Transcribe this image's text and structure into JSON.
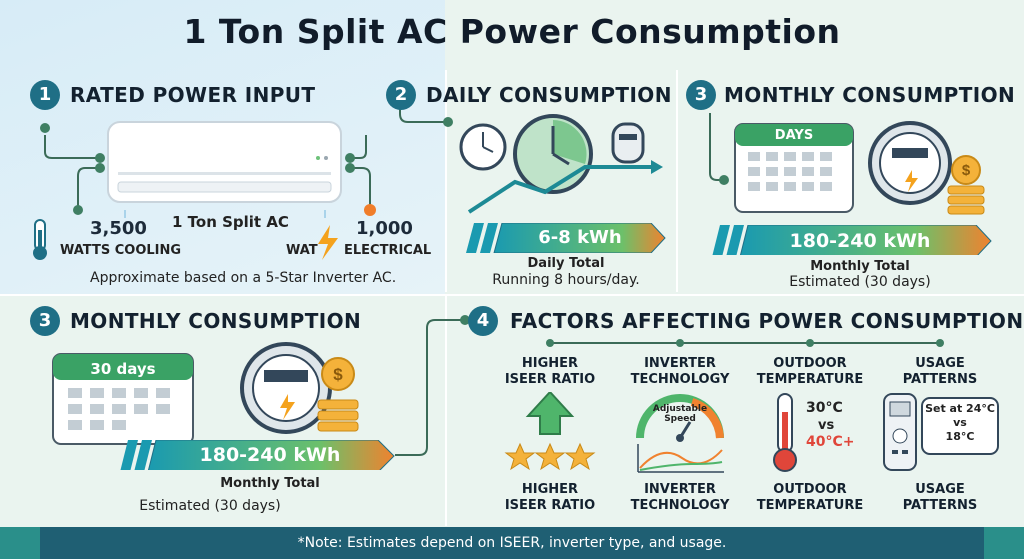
{
  "title": "1 Ton Split AC Power Consumption",
  "panel1": {
    "number": "1",
    "heading": "RATED POWER INPUT",
    "ac_label": "1 Ton Split AC",
    "cooling_value": "3,500",
    "cooling_label": "WATTS COOLING",
    "watt_label": "WAT",
    "electrical_value": "1,000",
    "electrical_label": "ELECTRICAL",
    "note": "Approximate based on a 5-Star Inverter AC."
  },
  "panel2": {
    "number": "2",
    "heading": "DAILY CONSUMPTION",
    "band_value": "6-8 kWh",
    "caption_title": "Daily Total",
    "caption_sub": "Running 8 hours/day."
  },
  "panel3a": {
    "number": "3",
    "heading": "MONTHLY CONSUMPTION",
    "calendar_label": "DAYS",
    "band_value": "180-240 kWh",
    "caption_title": "Monthly Total",
    "caption_sub": "Estimated (30 days)"
  },
  "panel3b": {
    "number": "3",
    "heading": "MONTHLY CONSUMPTION",
    "calendar_label": "30 days",
    "band_value": "180-240 kWh",
    "caption_title": "Monthly Total",
    "caption_sub": "Estimated (30 days)"
  },
  "panel4": {
    "number": "4",
    "heading": "FACTORS AFFECTING POWER CONSUMPTION",
    "factors": [
      {
        "top": "HIGHER\nISEER RATIO",
        "bottom": "HIGHER\nISEER RATIO"
      },
      {
        "top": "INVERTER\nTECHNOLOGY",
        "bottom": "INVERTER\nTECHNOLOGY",
        "gauge_label": "Adjustable\nSpeed"
      },
      {
        "top": "OUTDOOR\nTEMPERATURE",
        "bottom": "OUTDOOR\nTEMPERATURE",
        "temp_low": "30°C",
        "temp_vs": "vs",
        "temp_high": "40°C+"
      },
      {
        "top": "USAGE\nPATTERNS",
        "bottom": "USAGE\nPATTERNS",
        "bubble": "Set at 24°C\nvs\n18°C"
      }
    ]
  },
  "footer": {
    "note": "*Note: Estimates depend on ISEER, inverter type, and usage."
  },
  "colors": {
    "accent": "#1f6f86",
    "band_start": "#1a9ab0",
    "band_end": "#f0822f",
    "footer": "#1f5f73"
  }
}
